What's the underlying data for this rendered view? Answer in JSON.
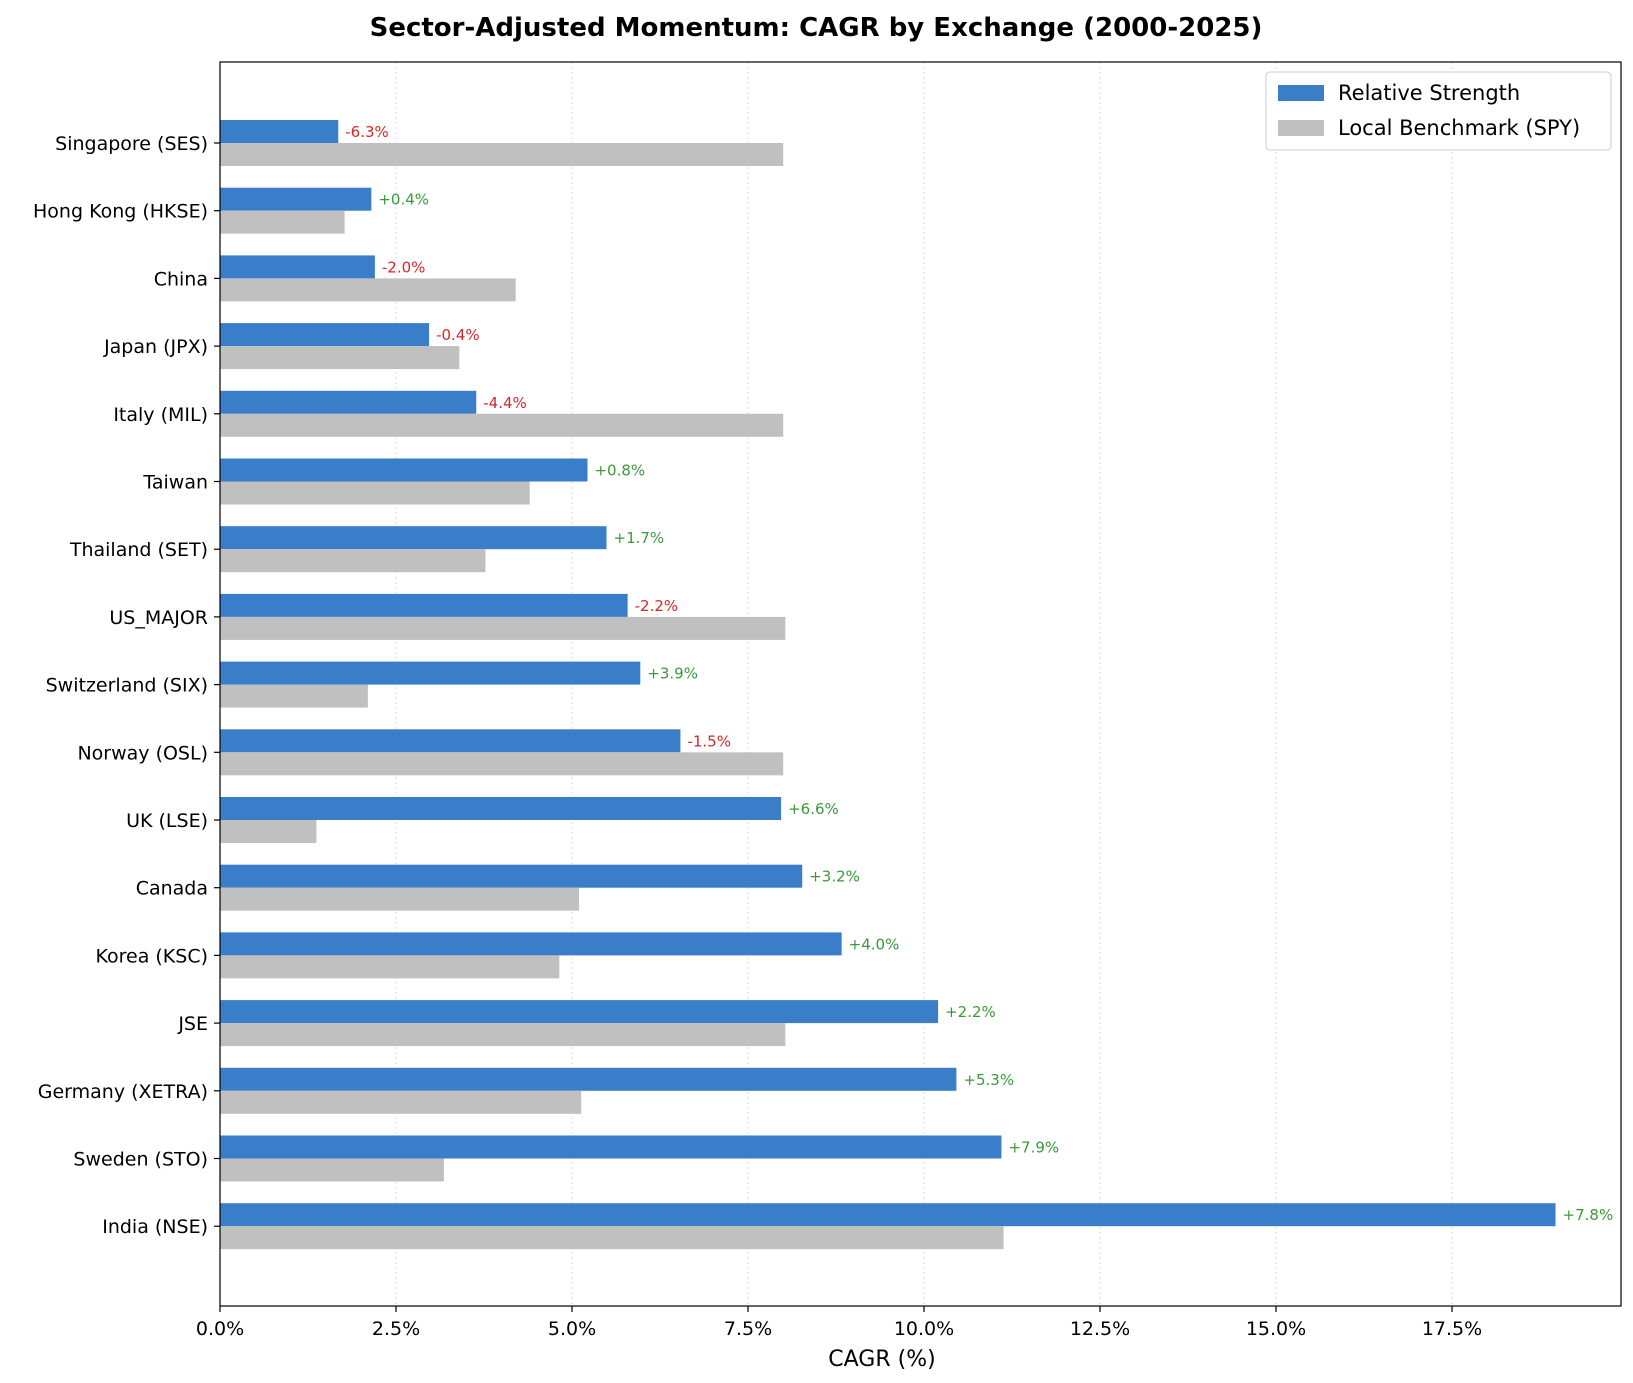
{
  "chart_data": {
    "type": "bar",
    "orientation": "horizontal",
    "title": "Sector-Adjusted Momentum: CAGR by Exchange (2000-2025)",
    "xlabel": "CAGR (%)",
    "ylabel": "",
    "xlim": [
      0,
      19.9
    ],
    "xticks": [
      0,
      2.5,
      5,
      7.5,
      10,
      12.5,
      15,
      17.5
    ],
    "xtick_labels": [
      "0.0%",
      "2.5%",
      "5.0%",
      "7.5%",
      "10.0%",
      "12.5%",
      "15.0%",
      "17.5%"
    ],
    "grid": "x, dotted",
    "legend_position": "top-right",
    "categories": [
      "Singapore (SES)",
      "Hong Kong (HKSE)",
      "China",
      "Japan (JPX)",
      "Italy (MIL)",
      "Taiwan",
      "Thailand (SET)",
      "US_MAJOR",
      "Switzerland (SIX)",
      "Norway (OSL)",
      "UK (LSE)",
      "Canada",
      "Korea (KSC)",
      "JSE",
      "Germany (XETRA)",
      "Sweden (STO)",
      "India (NSE)"
    ],
    "series": [
      {
        "name": "Relative Strength",
        "color": "#3a7dc9",
        "values": [
          1.68,
          2.15,
          2.2,
          2.97,
          3.64,
          5.22,
          5.49,
          5.79,
          5.97,
          6.54,
          7.97,
          8.27,
          8.83,
          10.2,
          10.46,
          11.1,
          18.97
        ]
      },
      {
        "name": "Local Benchmark (SPY)",
        "color": "#c0c0c0",
        "values": [
          8.0,
          1.77,
          4.2,
          3.4,
          8.0,
          4.4,
          3.77,
          8.03,
          2.1,
          8.0,
          1.37,
          5.1,
          4.82,
          8.03,
          5.13,
          3.18,
          11.13
        ]
      }
    ],
    "data_labels": [
      "-6.3%",
      "+0.4%",
      "-2.0%",
      "-0.4%",
      "-4.4%",
      "+0.8%",
      "+1.7%",
      "-2.2%",
      "+3.9%",
      "-1.5%",
      "+6.6%",
      "+3.2%",
      "+4.0%",
      "+2.2%",
      "+5.3%",
      "+7.9%",
      "+7.8%"
    ],
    "label_colors": {
      "positive": "#3a9a3a",
      "negative": "#d62728"
    }
  }
}
